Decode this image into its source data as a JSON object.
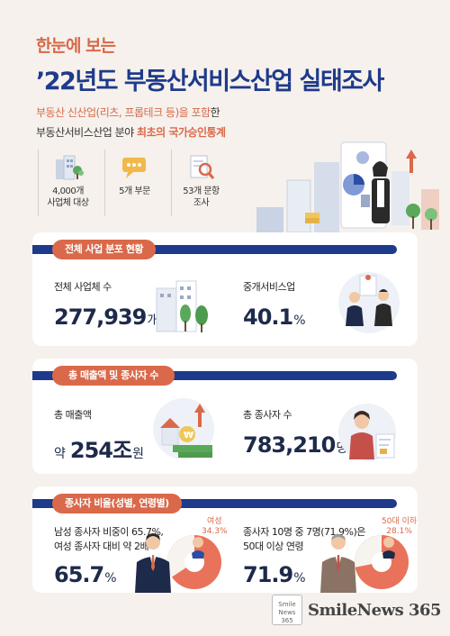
{
  "header": {
    "subtitle": "한눈에 보는",
    "title": "’22년도 부동산서비스산업 실태조사",
    "desc_line1_accent": "부동산 신산업(리츠, 프롭테크 등)을 포함",
    "desc_line1_rest": "한",
    "desc_line2_plain": "부동산서비스산업 분야 ",
    "desc_line2_accent": "최초의 국가승인통계"
  },
  "features": [
    {
      "label_line1": "4,000개",
      "label_line2": "사업체 대상",
      "icon": "buildings-icon"
    },
    {
      "label_line1": "5개 부문",
      "label_line2": "",
      "icon": "chat-bubble-icon"
    },
    {
      "label_line1": "53개 문항",
      "label_line2": "조사",
      "icon": "magnifier-document-icon"
    }
  ],
  "card1": {
    "tag": "전체 사업 분포 현황",
    "left_label": "전체 사업체 수",
    "left_value": "277,939",
    "left_unit": "개",
    "right_label": "중개서비스업",
    "right_value": "40.1",
    "right_unit": "%"
  },
  "card2": {
    "tag": "총 매출액 및 종사자 수",
    "left_label": "총 매출액",
    "left_prefix": "약",
    "left_value": "254조",
    "left_unit": "원",
    "right_label": "총 종사자 수",
    "right_value": "783,210",
    "right_unit": "명"
  },
  "card3": {
    "tag": "종사자 비율(성별, 연령별)",
    "left_label_line1": "남성 종사자 비중이 65.7%,",
    "left_label_line2": "여성 종사자 대비 약 2배",
    "left_value": "65.7",
    "left_unit": "%",
    "left_pie_label_line1": "여성",
    "left_pie_label_line2": "34.3%",
    "left_pie_share": 0.657,
    "right_label_line1": "종사자 10명 중 7명(71.9%)은",
    "right_label_line2": "50대 이상 연령",
    "right_value": "71.9",
    "right_unit": "%",
    "right_pie_label_line1": "50대 이하",
    "right_pie_label_line2": "28.1%",
    "right_pie_share": 0.719
  },
  "footer": {
    "logo_line1": "Smile",
    "logo_line2": "News",
    "logo_line3": "365",
    "brand": "SmileNews 365"
  },
  "colors": {
    "navy": "#1e3a8a",
    "coral": "#d9694a",
    "background": "#f6f1ec"
  }
}
